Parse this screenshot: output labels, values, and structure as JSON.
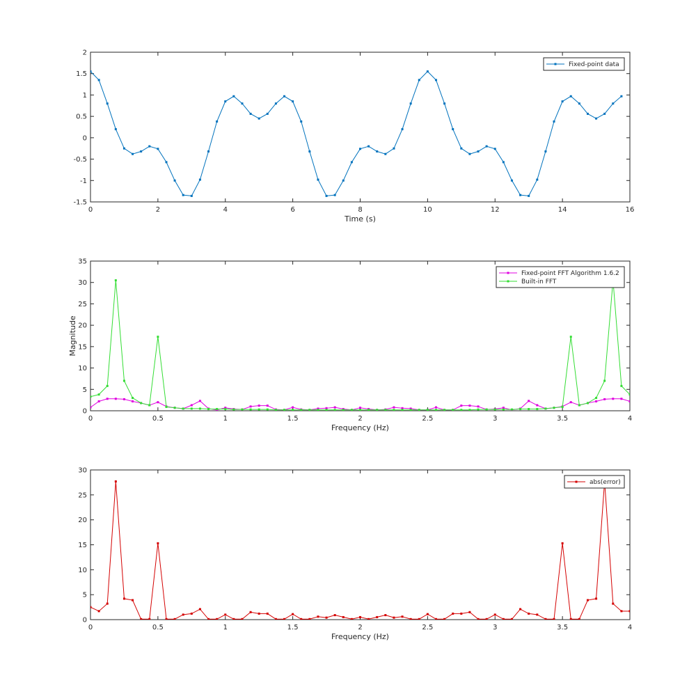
{
  "chart_data": [
    {
      "type": "line",
      "title": "",
      "xlabel": "Time (s)",
      "ylabel": "",
      "xlim": [
        0,
        16
      ],
      "ylim": [
        -1.5,
        2
      ],
      "xticks": [
        0,
        2,
        4,
        6,
        8,
        10,
        12,
        14,
        16
      ],
      "yticks": [
        -1.5,
        -1,
        -0.5,
        0,
        0.5,
        1,
        1.5,
        2
      ],
      "grid": false,
      "legend_position": "top-right",
      "series": [
        {
          "name": "Fixed-point data",
          "color": "#0072BD",
          "marker": "dot",
          "x": [
            0,
            0.25,
            0.5,
            0.75,
            1,
            1.25,
            1.5,
            1.75,
            2,
            2.25,
            2.5,
            2.75,
            3,
            3.25,
            3.5,
            3.75,
            4,
            4.25,
            4.5,
            4.75,
            5,
            5.25,
            5.5,
            5.75,
            6,
            6.25,
            6.5,
            6.75,
            7,
            7.25,
            7.5,
            7.75,
            8,
            8.25,
            8.5,
            8.75,
            9,
            9.25,
            9.5,
            9.75,
            10,
            10.25,
            10.5,
            10.75,
            11,
            11.25,
            11.5,
            11.75,
            12,
            12.25,
            12.5,
            12.75,
            13,
            13.25,
            13.5,
            13.75,
            14,
            14.25,
            14.5,
            14.75,
            15,
            15.25,
            15.5,
            15.75
          ],
          "y": [
            1.55,
            1.35,
            0.8,
            0.2,
            -0.25,
            -0.38,
            -0.32,
            -0.2,
            -0.26,
            -0.57,
            -1.0,
            -1.34,
            -1.36,
            -0.98,
            -0.32,
            0.38,
            0.85,
            0.97,
            0.8,
            0.56,
            0.45,
            0.56,
            0.8,
            0.97,
            0.85,
            0.38,
            -0.32,
            -0.98,
            -1.36,
            -1.34,
            -1.0,
            -0.57,
            -0.26,
            -0.2,
            -0.32,
            -0.38,
            -0.25,
            0.2,
            0.8,
            1.35,
            1.55,
            1.35,
            0.8,
            0.2,
            -0.25,
            -0.38,
            -0.32,
            -0.2,
            -0.26,
            -0.57,
            -1.0,
            -1.34,
            -1.36,
            -0.98,
            -0.32,
            0.38,
            0.85,
            0.97,
            0.8,
            0.56,
            0.45,
            0.56,
            0.8,
            0.97
          ]
        }
      ]
    },
    {
      "type": "line",
      "title": "",
      "xlabel": "Frequency (Hz)",
      "ylabel": "Magnitude",
      "xlim": [
        0,
        4
      ],
      "ylim": [
        0,
        35
      ],
      "xticks": [
        0,
        0.5,
        1,
        1.5,
        2,
        2.5,
        3,
        3.5,
        4
      ],
      "yticks": [
        0,
        5,
        10,
        15,
        20,
        25,
        30,
        35
      ],
      "grid": false,
      "legend_position": "top-right",
      "series": [
        {
          "name": "Fixed-point FFT Algorithm 1.6.2",
          "color": "#E000E0",
          "marker": "dot",
          "x": [
            0,
            0.0625,
            0.125,
            0.1875,
            0.25,
            0.3125,
            0.375,
            0.4375,
            0.5,
            0.5625,
            0.625,
            0.6875,
            0.75,
            0.8125,
            0.875,
            0.9375,
            1,
            1.0625,
            1.125,
            1.1875,
            1.25,
            1.3125,
            1.375,
            1.4375,
            1.5,
            1.5625,
            1.625,
            1.6875,
            1.75,
            1.8125,
            1.875,
            1.9375,
            2,
            2.0625,
            2.125,
            2.1875,
            2.25,
            2.3125,
            2.375,
            2.4375,
            2.5,
            2.5625,
            2.625,
            2.6875,
            2.75,
            2.8125,
            2.875,
            2.9375,
            3,
            3.0625,
            3.125,
            3.1875,
            3.25,
            3.3125,
            3.375,
            3.4375,
            3.5,
            3.5625,
            3.625,
            3.6875,
            3.75,
            3.8125,
            3.875,
            3.9375,
            4
          ],
          "y": [
            0.8,
            2.2,
            2.8,
            2.8,
            2.7,
            2.2,
            1.8,
            1.3,
            2.0,
            1.0,
            0.7,
            0.5,
            1.3,
            2.3,
            0.5,
            0.2,
            0.7,
            0.4,
            0.3,
            1.0,
            1.2,
            1.2,
            0.3,
            0.2,
            0.8,
            0.3,
            0.2,
            0.5,
            0.6,
            0.8,
            0.4,
            0.2,
            0.7,
            0.4,
            0.2,
            0.3,
            0.8,
            0.6,
            0.5,
            0.2,
            0.2,
            0.8,
            0.2,
            0.2,
            1.2,
            1.2,
            1.0,
            0.3,
            0.4,
            0.7,
            0.2,
            0.5,
            2.3,
            1.3,
            0.5,
            0.7,
            1.0,
            2.0,
            1.3,
            1.8,
            2.2,
            2.7,
            2.8,
            2.8,
            2.2
          ]
        },
        {
          "name": "Built-in FFT",
          "color": "#33DD33",
          "marker": "dot",
          "x": [
            0,
            0.0625,
            0.125,
            0.1875,
            0.25,
            0.3125,
            0.375,
            0.4375,
            0.5,
            0.5625,
            0.625,
            0.6875,
            0.75,
            0.8125,
            0.875,
            0.9375,
            1,
            1.0625,
            1.125,
            1.1875,
            1.25,
            1.3125,
            1.375,
            1.4375,
            1.5,
            1.5625,
            1.625,
            1.6875,
            1.75,
            1.8125,
            1.875,
            1.9375,
            2,
            2.0625,
            2.125,
            2.1875,
            2.25,
            2.3125,
            2.375,
            2.4375,
            2.5,
            2.5625,
            2.625,
            2.6875,
            2.75,
            2.8125,
            2.875,
            2.9375,
            3,
            3.0625,
            3.125,
            3.1875,
            3.25,
            3.3125,
            3.375,
            3.4375,
            3.5,
            3.5625,
            3.625,
            3.6875,
            3.75,
            3.8125,
            3.875,
            3.9375,
            4
          ],
          "y": [
            3.3,
            3.8,
            5.8,
            30.5,
            7.0,
            3.0,
            1.8,
            1.3,
            17.3,
            0.9,
            0.7,
            0.5,
            0.5,
            0.5,
            0.4,
            0.4,
            0.4,
            0.3,
            0.3,
            0.3,
            0.3,
            0.3,
            0.2,
            0.2,
            0.2,
            0.2,
            0.2,
            0.2,
            0.2,
            0.2,
            0.2,
            0.2,
            0.2,
            0.2,
            0.2,
            0.2,
            0.2,
            0.2,
            0.2,
            0.2,
            0.2,
            0.2,
            0.2,
            0.2,
            0.2,
            0.2,
            0.3,
            0.3,
            0.3,
            0.3,
            0.3,
            0.4,
            0.4,
            0.4,
            0.5,
            0.7,
            0.9,
            17.3,
            1.3,
            1.8,
            3.0,
            7.0,
            30.5,
            5.8,
            3.8
          ]
        }
      ]
    },
    {
      "type": "line",
      "title": "",
      "xlabel": "Frequency (Hz)",
      "ylabel": "",
      "xlim": [
        0,
        4
      ],
      "ylim": [
        0,
        30
      ],
      "xticks": [
        0,
        0.5,
        1,
        1.5,
        2,
        2.5,
        3,
        3.5,
        4
      ],
      "yticks": [
        0,
        5,
        10,
        15,
        20,
        25,
        30
      ],
      "grid": false,
      "legend_position": "top-right",
      "series": [
        {
          "name": "abs(error)",
          "color": "#D40000",
          "marker": "dot",
          "x": [
            0,
            0.0625,
            0.125,
            0.1875,
            0.25,
            0.3125,
            0.375,
            0.4375,
            0.5,
            0.5625,
            0.625,
            0.6875,
            0.75,
            0.8125,
            0.875,
            0.9375,
            1,
            1.0625,
            1.125,
            1.1875,
            1.25,
            1.3125,
            1.375,
            1.4375,
            1.5,
            1.5625,
            1.625,
            1.6875,
            1.75,
            1.8125,
            1.875,
            1.9375,
            2,
            2.0625,
            2.125,
            2.1875,
            2.25,
            2.3125,
            2.375,
            2.4375,
            2.5,
            2.5625,
            2.625,
            2.6875,
            2.75,
            2.8125,
            2.875,
            2.9375,
            3,
            3.0625,
            3.125,
            3.1875,
            3.25,
            3.3125,
            3.375,
            3.4375,
            3.5,
            3.5625,
            3.625,
            3.6875,
            3.75,
            3.8125,
            3.875,
            3.9375,
            4
          ],
          "y": [
            2.5,
            1.7,
            3.2,
            27.7,
            4.2,
            3.9,
            0.1,
            0.1,
            15.3,
            0.1,
            0.1,
            1.0,
            1.2,
            2.1,
            0.1,
            0.1,
            1.0,
            0.1,
            0.1,
            1.5,
            1.2,
            1.2,
            0.1,
            0.1,
            1.1,
            0.1,
            0.1,
            0.6,
            0.4,
            0.9,
            0.5,
            0.1,
            0.5,
            0.1,
            0.5,
            0.9,
            0.4,
            0.6,
            0.1,
            0.1,
            1.1,
            0.1,
            0.1,
            1.2,
            1.2,
            1.5,
            0.1,
            0.1,
            1.0,
            0.1,
            0.1,
            2.1,
            1.2,
            1.0,
            0.1,
            0.1,
            15.3,
            0.1,
            0.1,
            3.9,
            4.2,
            27.7,
            3.2,
            1.7,
            1.7
          ]
        }
      ]
    }
  ]
}
